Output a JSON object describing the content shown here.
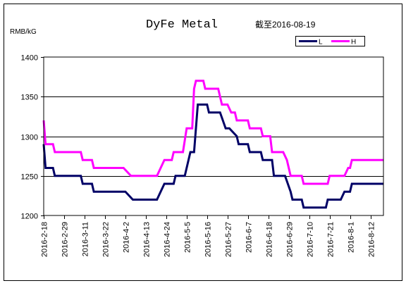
{
  "chart_data": {
    "type": "line",
    "title": "DyFe Metal",
    "subtitle": "截至2016-08-19",
    "ylabel": "RMB/kG",
    "xlabel": "",
    "ylim": [
      1200,
      1400
    ],
    "yticks": [
      1200,
      1250,
      1300,
      1350,
      1400
    ],
    "grid": true,
    "legend_position": "top-right",
    "x_start": "2016-02-18",
    "x_end": "2016-08-19",
    "xtick_labels": [
      "2016-2-18",
      "2016-2-29",
      "2016-3-11",
      "2016-3-22",
      "2016-4-2",
      "2016-4-13",
      "2016-4-24",
      "2016-5-5",
      "2016-5-16",
      "2016-5-27",
      "2016-6-7",
      "2016-6-18",
      "2016-6-29",
      "2016-7-10",
      "2016-7-21",
      "2016-8-1",
      "2016-8-12"
    ],
    "xtick_dates": [
      "2016-02-18",
      "2016-02-29",
      "2016-03-11",
      "2016-03-22",
      "2016-04-02",
      "2016-04-13",
      "2016-04-24",
      "2016-05-05",
      "2016-05-16",
      "2016-05-27",
      "2016-06-07",
      "2016-06-18",
      "2016-06-29",
      "2016-07-10",
      "2016-07-21",
      "2016-08-01",
      "2016-08-12"
    ],
    "series": [
      {
        "name": "L",
        "color": "#000066",
        "points": [
          [
            "2016-02-18",
            1290
          ],
          [
            "2016-02-19",
            1260
          ],
          [
            "2016-02-23",
            1260
          ],
          [
            "2016-02-24",
            1250
          ],
          [
            "2016-03-09",
            1250
          ],
          [
            "2016-03-10",
            1240
          ],
          [
            "2016-03-15",
            1240
          ],
          [
            "2016-03-16",
            1230
          ],
          [
            "2016-04-02",
            1230
          ],
          [
            "2016-04-06",
            1220
          ],
          [
            "2016-04-19",
            1220
          ],
          [
            "2016-04-21",
            1230
          ],
          [
            "2016-04-23",
            1240
          ],
          [
            "2016-04-28",
            1240
          ],
          [
            "2016-04-29",
            1250
          ],
          [
            "2016-05-04",
            1250
          ],
          [
            "2016-05-07",
            1280
          ],
          [
            "2016-05-09",
            1280
          ],
          [
            "2016-05-11",
            1340
          ],
          [
            "2016-05-16",
            1340
          ],
          [
            "2016-05-17",
            1330
          ],
          [
            "2016-05-23",
            1330
          ],
          [
            "2016-05-26",
            1310
          ],
          [
            "2016-05-28",
            1310
          ],
          [
            "2016-06-01",
            1300
          ],
          [
            "2016-06-02",
            1290
          ],
          [
            "2016-06-07",
            1290
          ],
          [
            "2016-06-08",
            1280
          ],
          [
            "2016-06-14",
            1280
          ],
          [
            "2016-06-15",
            1270
          ],
          [
            "2016-06-20",
            1270
          ],
          [
            "2016-06-21",
            1250
          ],
          [
            "2016-06-27",
            1250
          ],
          [
            "2016-06-30",
            1230
          ],
          [
            "2016-07-01",
            1220
          ],
          [
            "2016-07-06",
            1220
          ],
          [
            "2016-07-07",
            1210
          ],
          [
            "2016-07-19",
            1210
          ],
          [
            "2016-07-20",
            1220
          ],
          [
            "2016-07-27",
            1220
          ],
          [
            "2016-07-29",
            1230
          ],
          [
            "2016-08-01",
            1230
          ],
          [
            "2016-08-02",
            1240
          ],
          [
            "2016-08-19",
            1240
          ]
        ]
      },
      {
        "name": "H",
        "color": "#ff00ff",
        "points": [
          [
            "2016-02-18",
            1320
          ],
          [
            "2016-02-19",
            1290
          ],
          [
            "2016-02-23",
            1290
          ],
          [
            "2016-02-24",
            1280
          ],
          [
            "2016-03-09",
            1280
          ],
          [
            "2016-03-10",
            1270
          ],
          [
            "2016-03-15",
            1270
          ],
          [
            "2016-03-16",
            1260
          ],
          [
            "2016-04-01",
            1260
          ],
          [
            "2016-04-05",
            1250
          ],
          [
            "2016-04-19",
            1250
          ],
          [
            "2016-04-21",
            1260
          ],
          [
            "2016-04-23",
            1270
          ],
          [
            "2016-04-27",
            1270
          ],
          [
            "2016-04-28",
            1280
          ],
          [
            "2016-05-03",
            1280
          ],
          [
            "2016-05-05",
            1310
          ],
          [
            "2016-05-08",
            1310
          ],
          [
            "2016-05-09",
            1360
          ],
          [
            "2016-05-10",
            1370
          ],
          [
            "2016-05-14",
            1370
          ],
          [
            "2016-05-15",
            1360
          ],
          [
            "2016-05-22",
            1360
          ],
          [
            "2016-05-24",
            1340
          ],
          [
            "2016-05-27",
            1340
          ],
          [
            "2016-05-29",
            1330
          ],
          [
            "2016-05-31",
            1330
          ],
          [
            "2016-06-01",
            1320
          ],
          [
            "2016-06-07",
            1320
          ],
          [
            "2016-06-08",
            1310
          ],
          [
            "2016-06-14",
            1310
          ],
          [
            "2016-06-15",
            1300
          ],
          [
            "2016-06-19",
            1300
          ],
          [
            "2016-06-20",
            1280
          ],
          [
            "2016-06-26",
            1280
          ],
          [
            "2016-06-28",
            1270
          ],
          [
            "2016-06-30",
            1250
          ],
          [
            "2016-07-06",
            1250
          ],
          [
            "2016-07-07",
            1240
          ],
          [
            "2016-07-20",
            1240
          ],
          [
            "2016-07-21",
            1250
          ],
          [
            "2016-07-29",
            1250
          ],
          [
            "2016-07-31",
            1260
          ],
          [
            "2016-08-01",
            1260
          ],
          [
            "2016-08-02",
            1270
          ],
          [
            "2016-08-19",
            1270
          ]
        ]
      }
    ]
  }
}
